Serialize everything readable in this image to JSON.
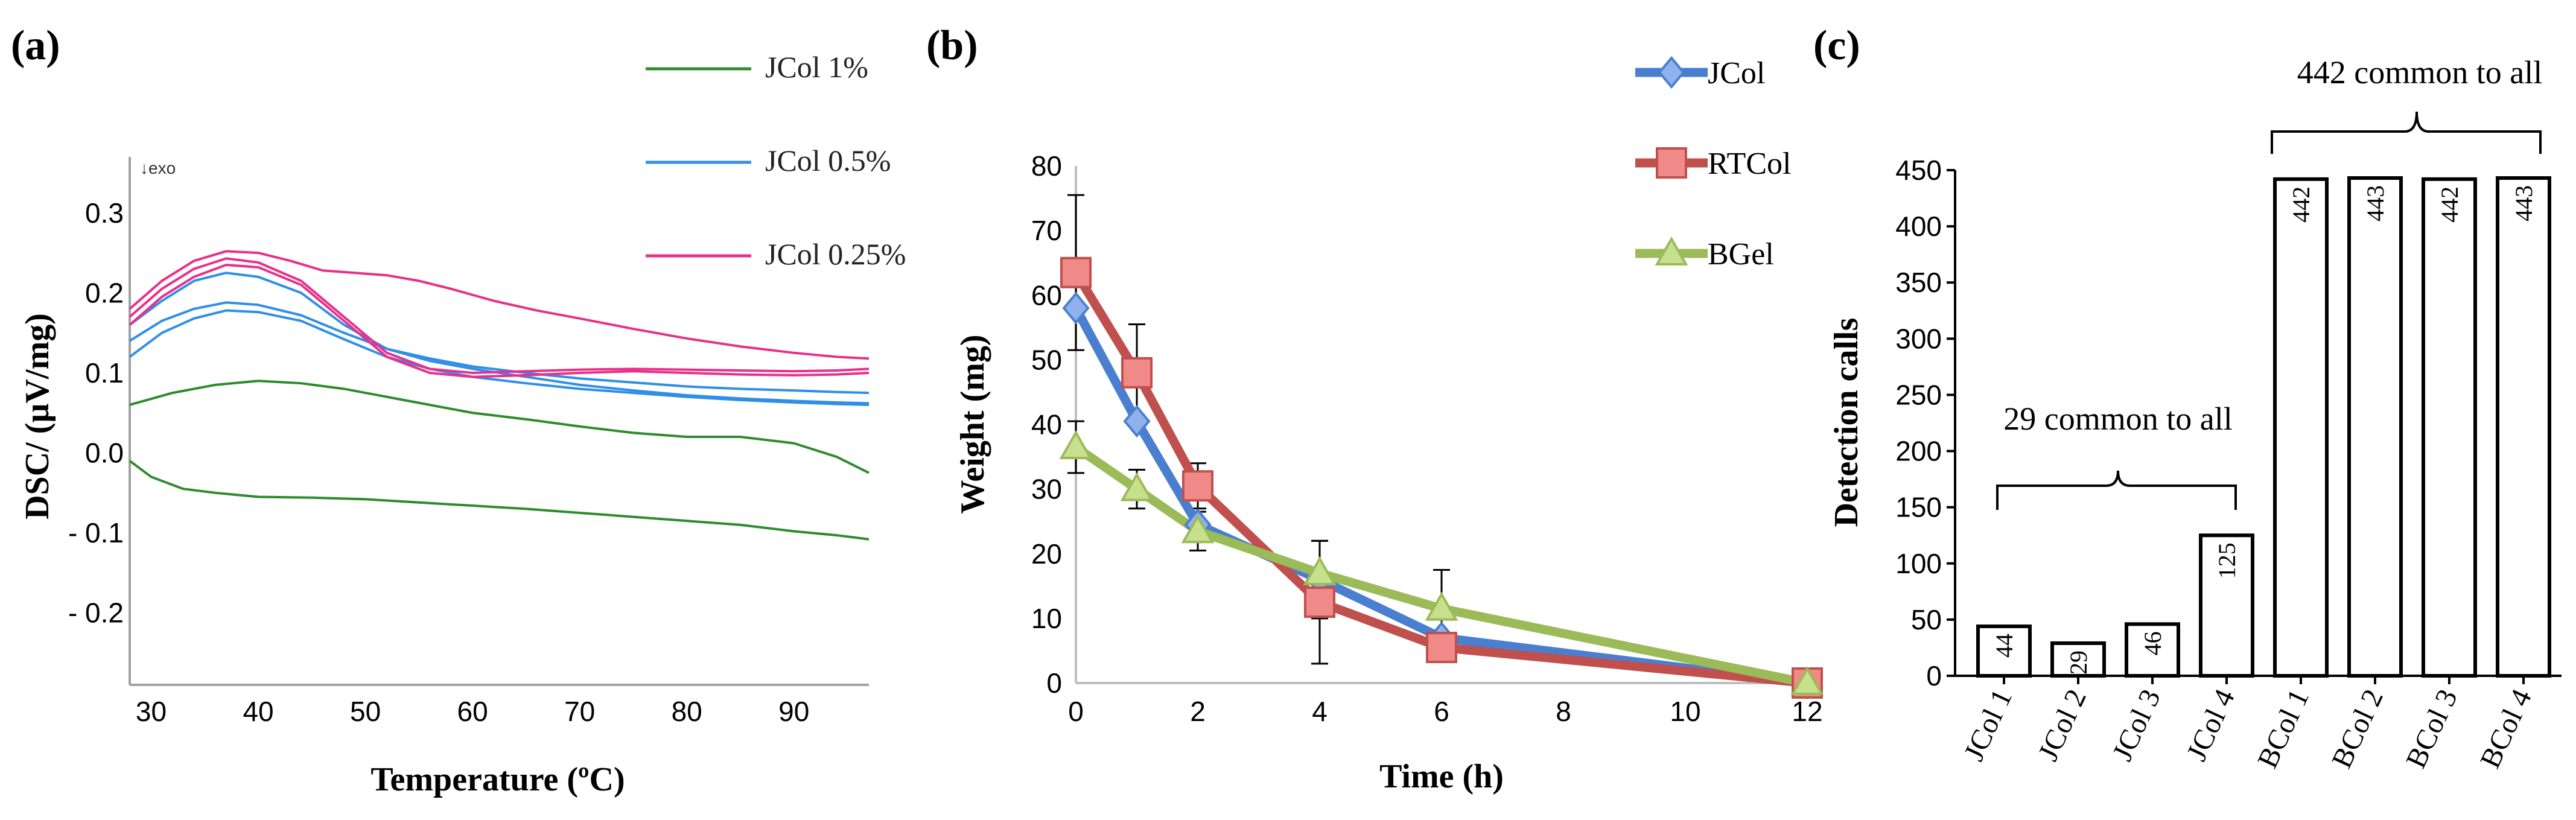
{
  "panel_labels": {
    "a": "(a)",
    "b": "(b)",
    "c": "(c)"
  },
  "chart_data": [
    {
      "type": "line",
      "panel": "a",
      "xlabel": "Temperature (ºC)",
      "ylabel": "DSC/ (µV/mg)",
      "xlim": [
        28,
        97
      ],
      "ylim": [
        -0.29,
        0.37
      ],
      "xticks": [
        "30",
        "40",
        "50",
        "60",
        "70",
        "80",
        "90"
      ],
      "yticks": [
        "0.3",
        "0.2",
        "0.1",
        "0.0",
        "- 0.1",
        "- 0.2"
      ],
      "annotation": "↓exo",
      "legend": [
        "JCol 1%",
        "JCol 0.5%",
        "JCol 0.25%"
      ],
      "colors": {
        "JCol 1%": "#2e8b2e",
        "JCol 0.5%": "#2f8fe6",
        "JCol 0.25%": "#e8308a"
      },
      "series": [
        {
          "name": "JCol 1% (upper)",
          "group": "JCol 1%",
          "x": [
            28,
            32,
            36,
            40,
            44,
            48,
            52,
            56,
            60,
            65,
            70,
            75,
            80,
            85,
            90,
            94,
            97
          ],
          "y": [
            0.06,
            0.075,
            0.085,
            0.09,
            0.087,
            0.08,
            0.07,
            0.06,
            0.05,
            0.042,
            0.033,
            0.025,
            0.02,
            0.02,
            0.012,
            -0.005,
            -0.025
          ]
        },
        {
          "name": "JCol 1% (lower)",
          "group": "JCol 1%",
          "x": [
            28,
            30,
            33,
            36,
            40,
            45,
            50,
            55,
            60,
            65,
            70,
            75,
            80,
            85,
            90,
            94,
            97
          ],
          "y": [
            -0.01,
            -0.03,
            -0.045,
            -0.05,
            -0.055,
            -0.056,
            -0.058,
            -0.062,
            -0.066,
            -0.07,
            -0.075,
            -0.08,
            -0.085,
            -0.09,
            -0.098,
            -0.103,
            -0.108
          ]
        },
        {
          "name": "JCol 0.5% (a)",
          "group": "JCol 0.5%",
          "x": [
            28,
            31,
            34,
            37,
            40,
            44,
            48,
            52,
            56,
            60,
            65,
            70,
            75,
            80,
            85,
            90,
            94,
            97
          ],
          "y": [
            0.14,
            0.165,
            0.18,
            0.188,
            0.185,
            0.172,
            0.15,
            0.13,
            0.118,
            0.108,
            0.1,
            0.093,
            0.088,
            0.083,
            0.08,
            0.078,
            0.076,
            0.075
          ]
        },
        {
          "name": "JCol 0.5% (b)",
          "group": "JCol 0.5%",
          "x": [
            28,
            31,
            34,
            37,
            40,
            44,
            48,
            52,
            56,
            60,
            65,
            70,
            75,
            80,
            85,
            90,
            94,
            97
          ],
          "y": [
            0.16,
            0.19,
            0.215,
            0.225,
            0.22,
            0.2,
            0.16,
            0.13,
            0.115,
            0.105,
            0.095,
            0.085,
            0.078,
            0.072,
            0.068,
            0.065,
            0.063,
            0.062
          ]
        },
        {
          "name": "JCol 0.5% (c)",
          "group": "JCol 0.5%",
          "x": [
            28,
            31,
            34,
            37,
            40,
            44,
            48,
            52,
            56,
            60,
            65,
            70,
            75,
            80,
            85,
            90,
            94,
            97
          ],
          "y": [
            0.12,
            0.15,
            0.168,
            0.178,
            0.176,
            0.165,
            0.142,
            0.12,
            0.105,
            0.095,
            0.087,
            0.08,
            0.075,
            0.07,
            0.066,
            0.063,
            0.061,
            0.06
          ]
        },
        {
          "name": "JCol 0.25% (a)",
          "group": "JCol 0.25%",
          "x": [
            28,
            31,
            34,
            37,
            40,
            43,
            46,
            49,
            52,
            55,
            58,
            62,
            66,
            70,
            75,
            80,
            85,
            90,
            94,
            97
          ],
          "y": [
            0.18,
            0.215,
            0.24,
            0.252,
            0.25,
            0.24,
            0.228,
            0.225,
            0.222,
            0.215,
            0.205,
            0.19,
            0.178,
            0.168,
            0.155,
            0.143,
            0.133,
            0.125,
            0.12,
            0.118
          ]
        },
        {
          "name": "JCol 0.25% (b)",
          "group": "JCol 0.25%",
          "x": [
            28,
            31,
            34,
            37,
            40,
            44,
            48,
            52,
            56,
            60,
            65,
            70,
            75,
            80,
            85,
            90,
            94,
            97
          ],
          "y": [
            0.17,
            0.205,
            0.23,
            0.243,
            0.238,
            0.215,
            0.17,
            0.125,
            0.105,
            0.1,
            0.102,
            0.104,
            0.105,
            0.104,
            0.103,
            0.102,
            0.103,
            0.105
          ]
        },
        {
          "name": "JCol 0.25% (c)",
          "group": "JCol 0.25%",
          "x": [
            28,
            31,
            34,
            37,
            40,
            44,
            48,
            52,
            56,
            60,
            65,
            70,
            75,
            80,
            85,
            90,
            94,
            97
          ],
          "y": [
            0.16,
            0.195,
            0.22,
            0.235,
            0.232,
            0.21,
            0.165,
            0.12,
            0.1,
            0.095,
            0.097,
            0.1,
            0.102,
            0.1,
            0.098,
            0.097,
            0.098,
            0.1
          ]
        }
      ]
    },
    {
      "type": "line",
      "panel": "b",
      "xlabel": "Time (h)",
      "ylabel": "Weight (mg)",
      "categories": [
        "0",
        "1",
        "2",
        "4",
        "6",
        "12"
      ],
      "xpos": [
        0,
        1,
        2,
        4,
        6,
        12
      ],
      "xticks": [
        "0",
        "2",
        "4",
        "6",
        "8",
        "10",
        "12"
      ],
      "xtick_pos": [
        0,
        2,
        4,
        6,
        8,
        10,
        12
      ],
      "yticks": [
        "0",
        "10",
        "20",
        "30",
        "40",
        "50",
        "60",
        "70",
        "80"
      ],
      "ylim": [
        0,
        80
      ],
      "series": [
        {
          "name": "JCol",
          "color": "#4a7fd0",
          "marker": "diamond",
          "values": [
            58,
            40.5,
            24.5,
            16,
            7,
            0
          ],
          "err": [
            0,
            0,
            0,
            6,
            0,
            0
          ]
        },
        {
          "name": "RTCol",
          "color": "#c0504d",
          "marker": "square",
          "values": [
            63.5,
            48,
            30.5,
            12.5,
            5.5,
            0
          ],
          "err": [
            12,
            7.5,
            3.5,
            9.5,
            0,
            0
          ]
        },
        {
          "name": "BGel",
          "color": "#9bbb59",
          "marker": "triangle",
          "values": [
            36.5,
            30,
            23.5,
            17,
            11.5,
            0
          ],
          "err": [
            4,
            3,
            3,
            5,
            6,
            0
          ]
        }
      ]
    },
    {
      "type": "bar",
      "panel": "c",
      "ylabel": "Detection calls",
      "ylim": [
        0,
        450
      ],
      "yticks": [
        "0",
        "50",
        "100",
        "150",
        "200",
        "250",
        "300",
        "350",
        "400",
        "450"
      ],
      "categories": [
        "JCol 1",
        "JCol 2",
        "JCol 3",
        "JCol 4",
        "BCol 1",
        "BCol 2",
        "BCol 3",
        "BCol 4"
      ],
      "values": [
        44,
        29,
        46,
        125,
        442,
        443,
        442,
        443
      ],
      "value_labels": [
        "44",
        "29",
        "46",
        "125",
        "442",
        "443",
        "442",
        "443"
      ],
      "annotations": [
        "29 common to all",
        "442 common to all"
      ]
    }
  ]
}
